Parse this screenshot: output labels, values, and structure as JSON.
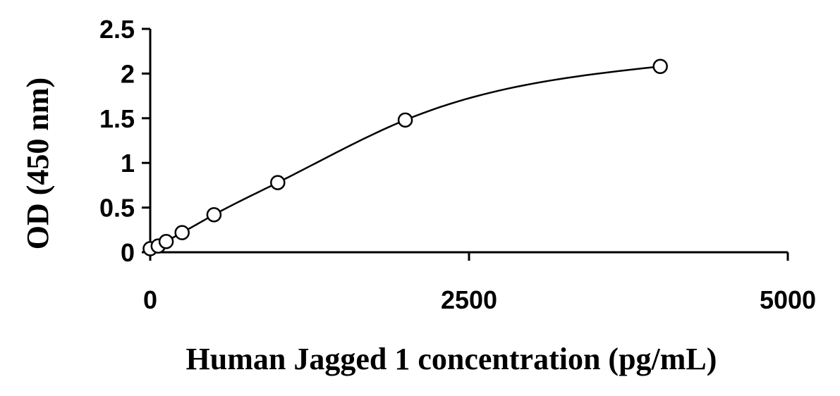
{
  "chart_data": {
    "type": "scatter",
    "title": "",
    "xlabel": "Human Jagged 1 concentration (pg/mL)",
    "ylabel": "OD (450 nm)",
    "xlim": [
      0,
      5000
    ],
    "ylim": [
      0,
      2.5
    ],
    "x_ticks": [
      "0",
      "2500",
      "5000"
    ],
    "y_ticks": [
      "0",
      "0.5",
      "1",
      "1.5",
      "2",
      "2.5"
    ],
    "grid": false,
    "legend": "none",
    "series": [
      {
        "points": [
          {
            "x": 0,
            "y": 0.04
          },
          {
            "x": 62.5,
            "y": 0.07
          },
          {
            "x": 125,
            "y": 0.12
          },
          {
            "x": 250,
            "y": 0.22
          },
          {
            "x": 500,
            "y": 0.42
          },
          {
            "x": 1000,
            "y": 0.78
          },
          {
            "x": 2000,
            "y": 1.48
          },
          {
            "x": 4000,
            "y": 2.08
          }
        ],
        "trendline": "fitted curve"
      }
    ],
    "colors": {
      "line": "#000000",
      "marker_fill": "#ffffff",
      "marker_stroke": "#000000"
    }
  }
}
